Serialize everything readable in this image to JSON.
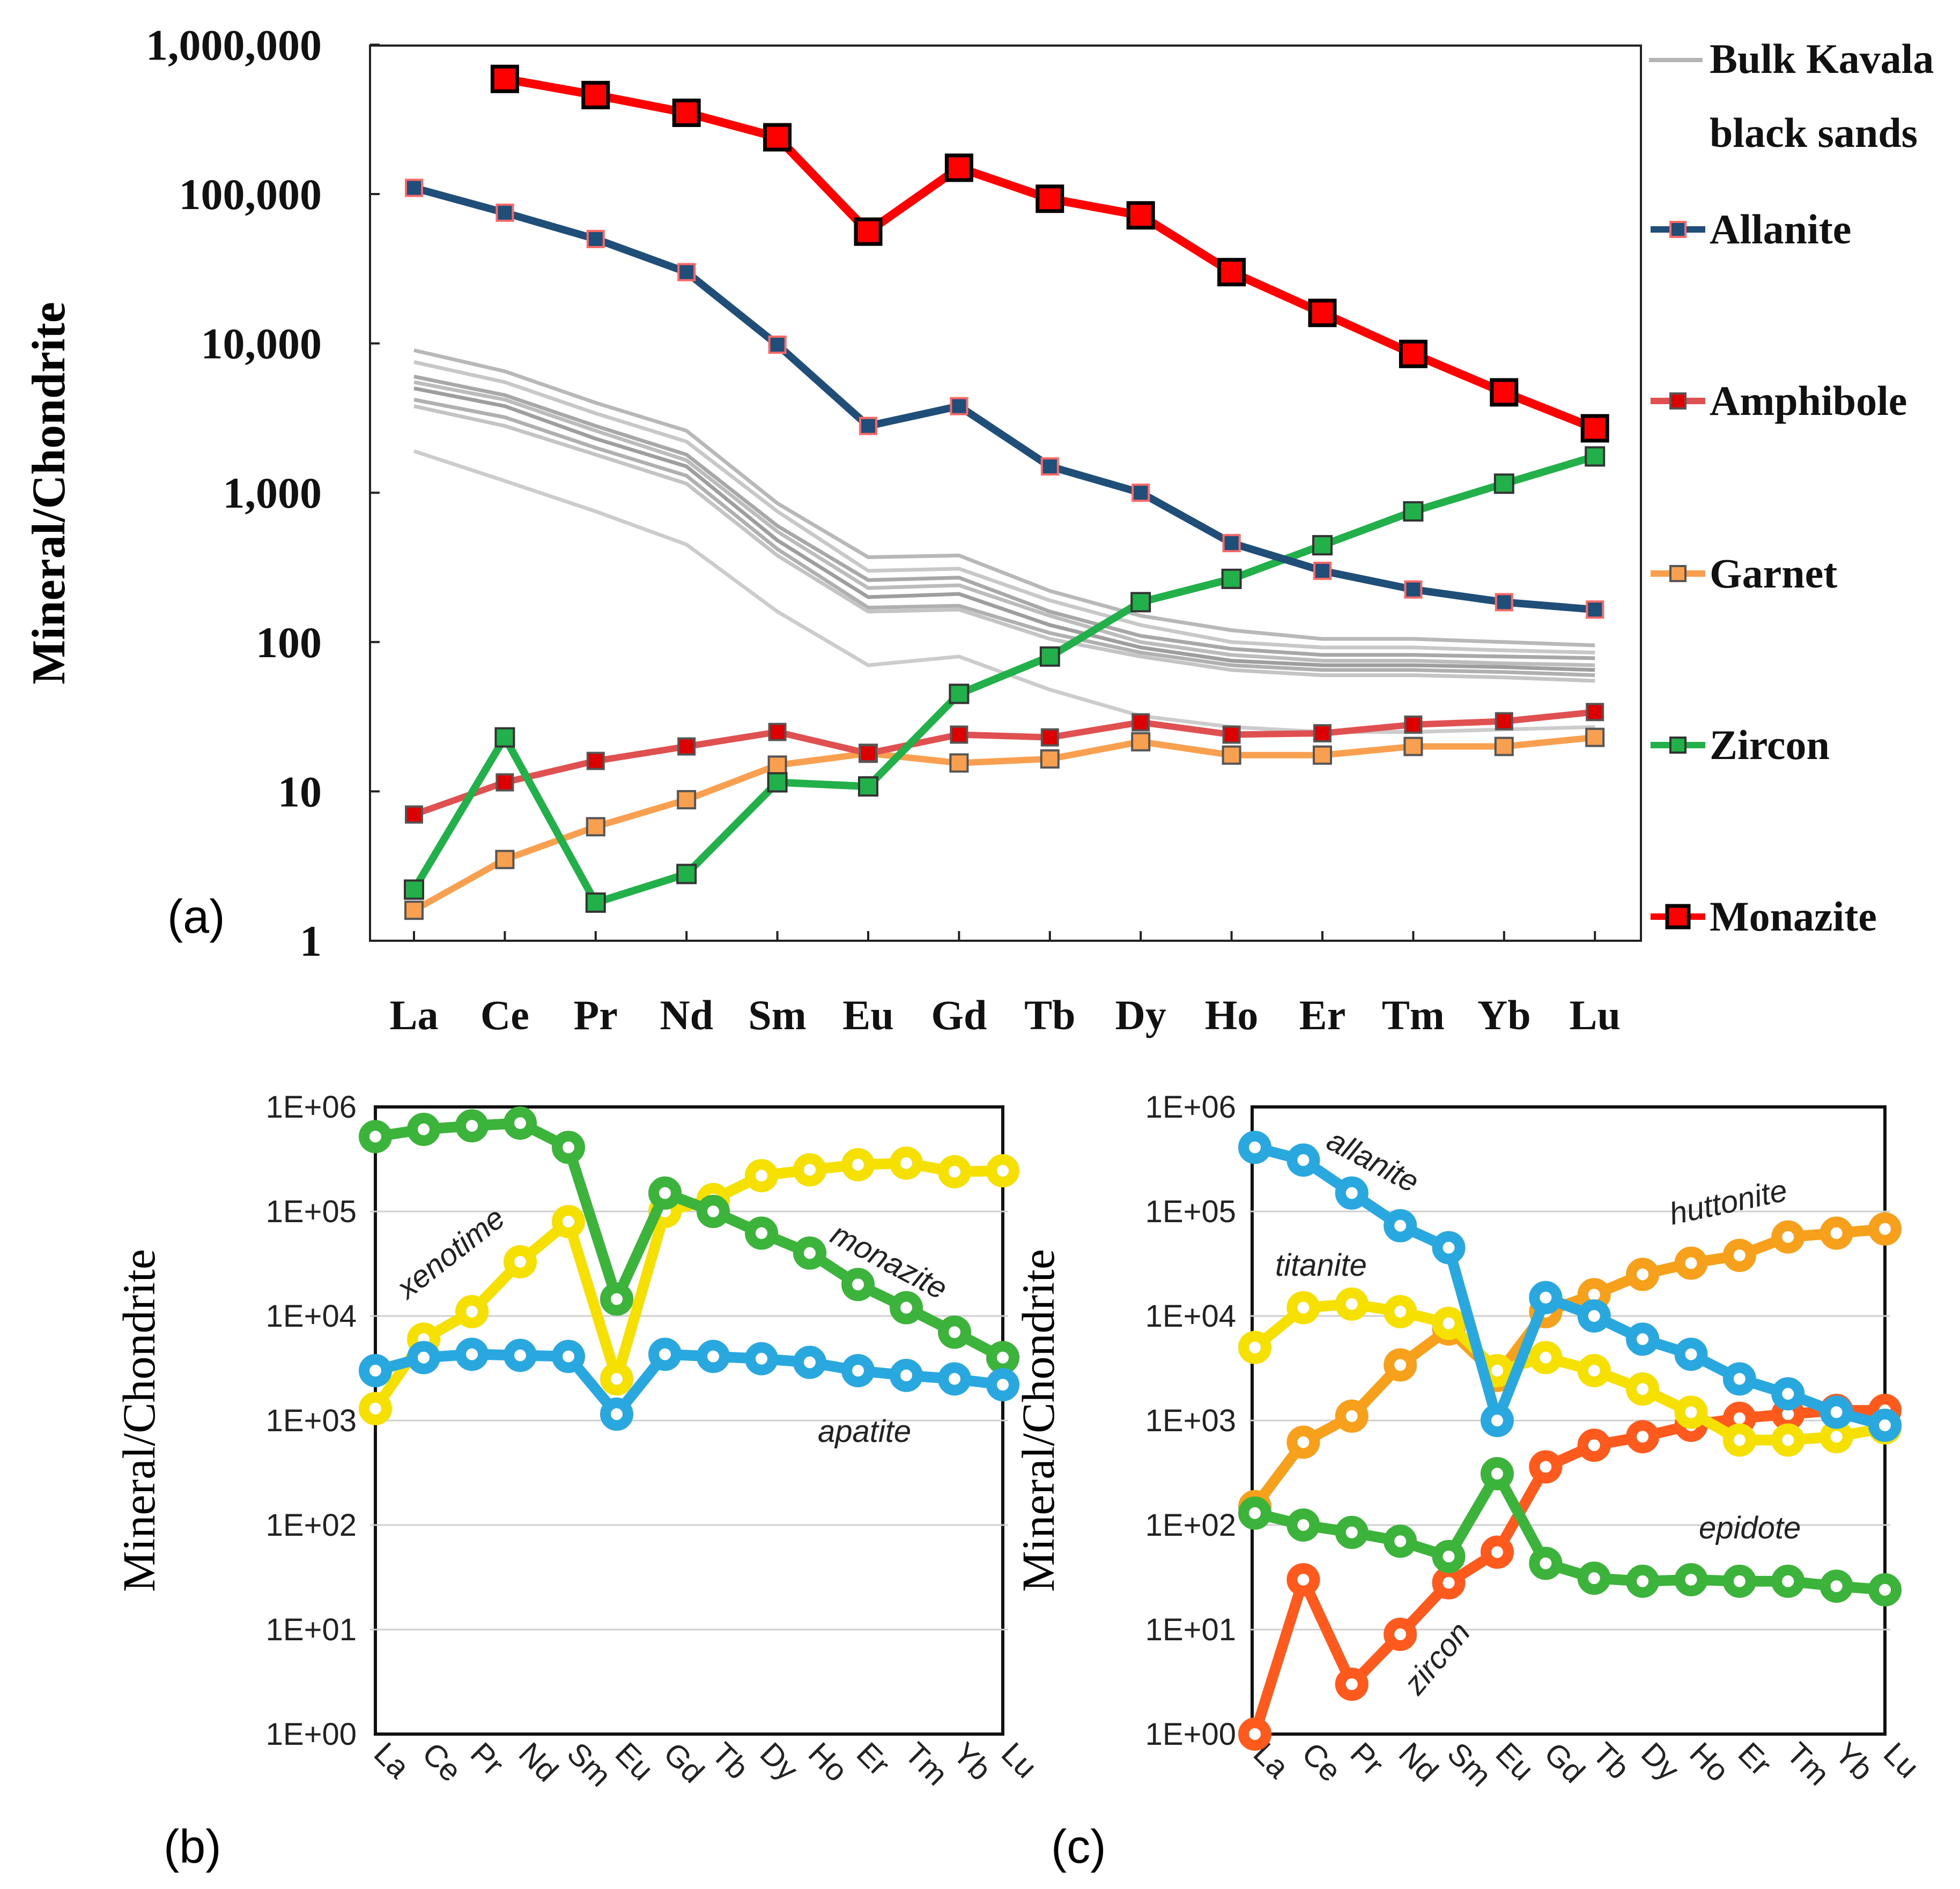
{
  "elements": [
    "La",
    "Ce",
    "Pr",
    "Nd",
    "Sm",
    "Eu",
    "Gd",
    "Tb",
    "Dy",
    "Ho",
    "Er",
    "Tm",
    "Yb",
    "Lu"
  ],
  "colors": {
    "allanite_a": "#1f4e79",
    "amphibole": "#e05050",
    "garnet": "#f8a050",
    "zircon_a": "#22b04a",
    "monazite_a": "#ff0000",
    "bulk": "#b4b4b4",
    "blue": "#29a8e0",
    "yellow": "#f5e000",
    "green": "#3cb43c",
    "orange": "#f7a01c",
    "redorange": "#ff5a1e"
  },
  "chart_data": [
    {
      "id": "a",
      "type": "line",
      "panel_label": "(a)",
      "ylabel": "Mineral/Chondrite",
      "yscale": "log",
      "ylim": [
        1,
        1000000
      ],
      "yticks": [
        {
          "v": 1,
          "label": "1"
        },
        {
          "v": 10,
          "label": "10"
        },
        {
          "v": 100,
          "label": "100"
        },
        {
          "v": 1000,
          "label": "1,000"
        },
        {
          "v": 10000,
          "label": "10,000"
        },
        {
          "v": 100000,
          "label": "100,000"
        },
        {
          "v": 1000000,
          "label": "1,000,000"
        }
      ],
      "legend": [
        {
          "key": "bulk",
          "label": [
            "Bulk Kavala",
            "black sands"
          ]
        },
        {
          "key": "allanite",
          "label": [
            "Allanite"
          ]
        },
        {
          "key": "amphibole",
          "label": [
            "Amphibole"
          ]
        },
        {
          "key": "garnet",
          "label": [
            "Garnet"
          ]
        },
        {
          "key": "zircon",
          "label": [
            "Zircon"
          ]
        },
        {
          "key": "monazite",
          "label": [
            "Monazite"
          ]
        }
      ],
      "bulk_lines": [
        [
          9000,
          6500,
          4000,
          2600,
          850,
          370,
          380,
          220,
          150,
          120,
          105,
          105,
          100,
          95
        ],
        [
          7500,
          5500,
          3400,
          2200,
          750,
          300,
          310,
          190,
          130,
          100,
          92,
          92,
          88,
          85
        ],
        [
          6000,
          4500,
          2800,
          1800,
          600,
          260,
          270,
          160,
          110,
          90,
          82,
          82,
          80,
          78
        ],
        [
          5500,
          4200,
          2600,
          1650,
          550,
          230,
          240,
          150,
          100,
          82,
          75,
          75,
          72,
          70
        ],
        [
          5000,
          3800,
          2300,
          1500,
          480,
          200,
          210,
          130,
          92,
          75,
          70,
          70,
          68,
          65
        ],
        [
          4200,
          3200,
          2000,
          1300,
          420,
          170,
          175,
          115,
          85,
          70,
          65,
          65,
          63,
          60
        ],
        [
          3800,
          2800,
          1800,
          1150,
          380,
          160,
          165,
          105,
          80,
          65,
          60,
          60,
          58,
          55
        ],
        [
          1900,
          1200,
          750,
          450,
          160,
          70,
          80,
          48,
          32,
          27,
          25,
          25,
          26,
          27
        ]
      ],
      "series": [
        {
          "key": "allanite",
          "name": "Allanite",
          "face": "#1f4e79",
          "edge": "#ff6666",
          "values": [
            110000,
            75000,
            50000,
            30000,
            9800,
            2800,
            3800,
            1500,
            1000,
            460,
            300,
            225,
            185,
            165
          ]
        },
        {
          "key": "amphibole",
          "name": "Amphibole",
          "face": "#dd0000",
          "edge": "#555555",
          "values": [
            7,
            11.5,
            16,
            20,
            25,
            18,
            24,
            23,
            29,
            24,
            24.5,
            28,
            29.5,
            34
          ]
        },
        {
          "key": "garnet",
          "name": "Garnet",
          "face": "#f8a050",
          "edge": "#555555",
          "values": [
            1.6,
            3.5,
            5.8,
            8.8,
            15,
            18,
            15.5,
            16.5,
            21.5,
            17.5,
            17.5,
            20,
            20,
            23
          ]
        },
        {
          "key": "zircon",
          "name": "Zircon",
          "face": "#22b04a",
          "edge": "#333333",
          "values": [
            2.2,
            23,
            1.8,
            2.8,
            11.5,
            10.8,
            45,
            80,
            185,
            265,
            445,
            750,
            1150,
            1750
          ]
        },
        {
          "key": "monazite",
          "name": "Monazite",
          "face": "#ff0000",
          "edge": "#000000",
          "values": [
            null,
            590000,
            460000,
            350000,
            240000,
            56000,
            150000,
            93000,
            72000,
            30000,
            16000,
            8500,
            4700,
            2700
          ]
        }
      ]
    },
    {
      "id": "b",
      "type": "line",
      "panel_label": "(b)",
      "ylabel": "Mineral/Chondrite",
      "yscale": "log",
      "ylim": [
        1,
        1000000
      ],
      "yticks": [
        {
          "v": 1,
          "label": "1E+00"
        },
        {
          "v": 10,
          "label": "1E+01"
        },
        {
          "v": 100,
          "label": "1E+02"
        },
        {
          "v": 1000,
          "label": "1E+03"
        },
        {
          "v": 10000,
          "label": "1E+04"
        },
        {
          "v": 100000,
          "label": "1E+05"
        },
        {
          "v": 1000000,
          "label": "1E+06"
        }
      ],
      "series": [
        {
          "name": "xenotime",
          "color": "#f5e000",
          "values": [
            1300,
            6000,
            11000,
            33000,
            80000,
            2500,
            100000,
            130000,
            220000,
            250000,
            280000,
            290000,
            240000,
            245000
          ]
        },
        {
          "name": "monazite",
          "color": "#3cb43c",
          "values": [
            520000,
            610000,
            660000,
            700000,
            410000,
            14500,
            150000,
            100000,
            62000,
            40000,
            20000,
            12000,
            7000,
            4000
          ]
        },
        {
          "name": "apatite",
          "color": "#29a8e0",
          "values": [
            3000,
            4000,
            4300,
            4200,
            4100,
            1150,
            4300,
            4100,
            3900,
            3600,
            3000,
            2700,
            2500,
            2200
          ]
        }
      ],
      "annotations": [
        "xenotime",
        "monazite",
        "apatite"
      ]
    },
    {
      "id": "c",
      "type": "line",
      "panel_label": "(c)",
      "ylabel": "Mineral/Chondrite",
      "yscale": "log",
      "ylim": [
        1,
        1000000
      ],
      "yticks": [
        {
          "v": 1,
          "label": "1E+00"
        },
        {
          "v": 10,
          "label": "1E+01"
        },
        {
          "v": 100,
          "label": "1E+02"
        },
        {
          "v": 1000,
          "label": "1E+03"
        },
        {
          "v": 10000,
          "label": "1E+04"
        },
        {
          "v": 100000,
          "label": "1E+05"
        },
        {
          "v": 1000000,
          "label": "1E+06"
        }
      ],
      "series": [
        {
          "name": "huttonite",
          "color": "#f7a01c",
          "values": [
            150,
            620,
            1100,
            3400,
            7500,
            2700,
            11000,
            16000,
            25000,
            32000,
            38000,
            57000,
            62000,
            68000
          ]
        },
        {
          "name": "zircon",
          "color": "#ff5a1e",
          "values": [
            1,
            30,
            3,
            9,
            28,
            55,
            360,
            580,
            700,
            900,
            1050,
            1150,
            1250,
            1250
          ]
        },
        {
          "name": "epidote",
          "color": "#3cb43c",
          "values": [
            130,
            100,
            85,
            70,
            50,
            310,
            43,
            31,
            29,
            30,
            29,
            29,
            26,
            24
          ]
        },
        {
          "name": "titanite",
          "color": "#f5e000",
          "values": [
            5000,
            12000,
            13000,
            11000,
            8500,
            3000,
            4000,
            3000,
            2000,
            1200,
            650,
            650,
            700,
            850
          ]
        },
        {
          "name": "allanite",
          "color": "#29a8e0",
          "values": [
            410000,
            310000,
            150000,
            73000,
            45000,
            1000,
            15000,
            10000,
            6000,
            4300,
            2500,
            1800,
            1200,
            900
          ]
        }
      ],
      "annotations": [
        "allanite",
        "huttonite",
        "titanite",
        "epidote",
        "zircon"
      ]
    }
  ]
}
